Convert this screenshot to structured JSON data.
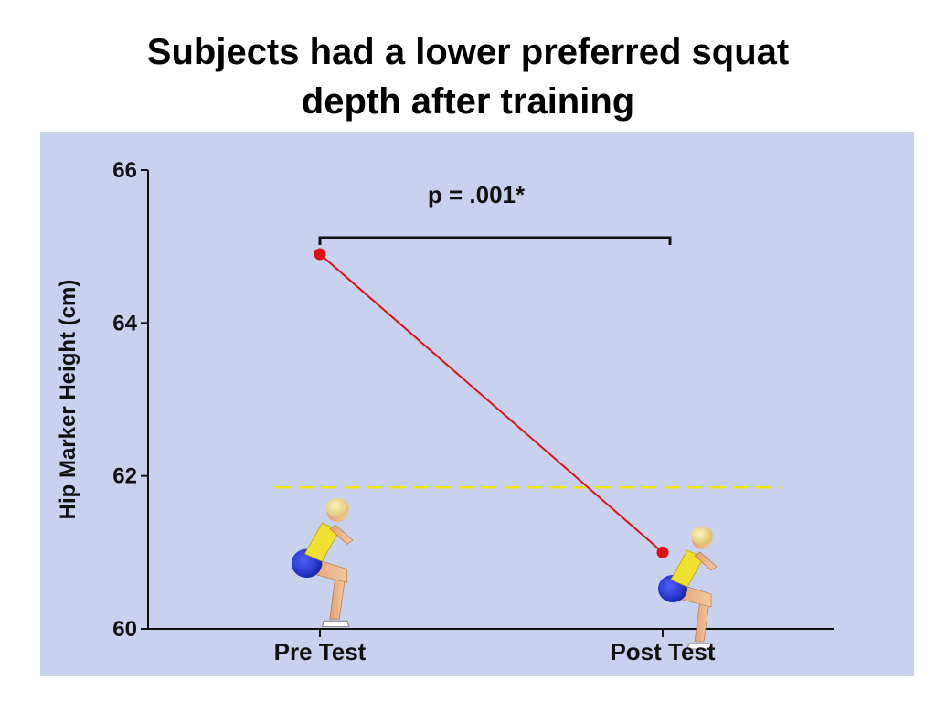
{
  "title_lines": [
    "Subjects had a lower preferred squat",
    "depth after training"
  ],
  "colors": {
    "panel_bg": "#c8d2ee",
    "series": "#dd1111",
    "reference_line": "#f2e600",
    "axis": "#111111"
  },
  "icons": {
    "pre_test": "squatting-person-illustration",
    "post_test": "squatting-person-illustration"
  },
  "chart_data": {
    "type": "line",
    "title": "Subjects had a lower preferred squat depth after training",
    "xlabel": "",
    "ylabel": "Hip Marker Height (cm)",
    "categories": [
      "Pre Test",
      "Post Test"
    ],
    "values": [
      64.9,
      61.0
    ],
    "ylim": [
      60,
      66
    ],
    "yticks": [
      60,
      62,
      64,
      66
    ],
    "ytick_labels": [
      "60",
      "62",
      "64",
      "66"
    ],
    "reference_line": {
      "style": "dashed",
      "y": 61.85
    },
    "annotation": {
      "text": "p = .001*",
      "type": "significance-bracket",
      "from": "Pre Test",
      "to": "Post Test"
    },
    "grid": false,
    "legend": "none"
  }
}
